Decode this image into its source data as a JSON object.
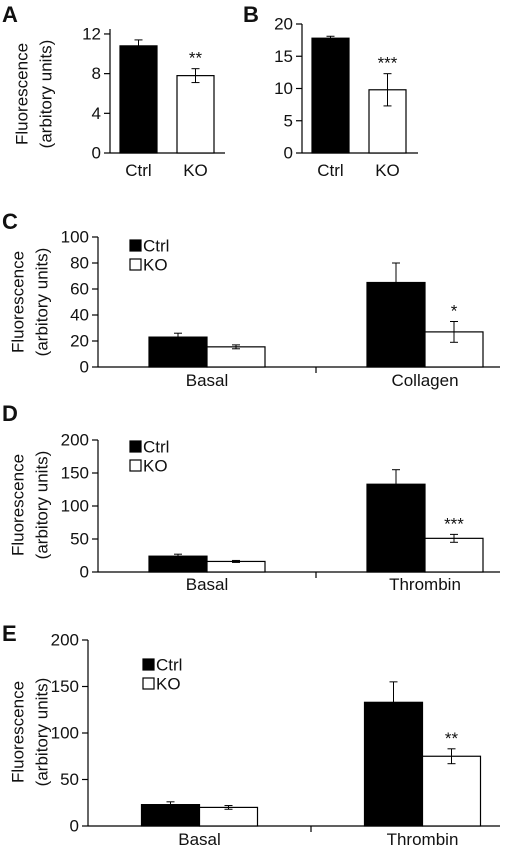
{
  "chart_data": [
    {
      "panel": "A",
      "type": "bar",
      "ylabel": [
        "Fluorescence",
        "(arbitory units)"
      ],
      "categories": [
        "Ctrl",
        "KO"
      ],
      "values": [
        10.8,
        7.8
      ],
      "errors": [
        0.6,
        0.7
      ],
      "colors": [
        "#000000",
        "#ffffff"
      ],
      "significance": [
        "",
        "**"
      ],
      "yticks": [
        0,
        4,
        8,
        12
      ],
      "ylim": [
        0,
        12.5
      ]
    },
    {
      "panel": "B",
      "type": "bar",
      "ylabel": [],
      "categories": [
        "Ctrl",
        "KO"
      ],
      "values": [
        17.8,
        9.8
      ],
      "errors": [
        0.3,
        2.5
      ],
      "colors": [
        "#000000",
        "#ffffff"
      ],
      "significance": [
        "",
        "***"
      ],
      "yticks": [
        0,
        5,
        10,
        15,
        20
      ],
      "ylim": [
        0,
        20
      ]
    },
    {
      "panel": "C",
      "type": "bar",
      "ylabel": [
        "Fluorescence",
        "(arbitory units)"
      ],
      "categories": [
        "Basal",
        "Collagen"
      ],
      "series": [
        {
          "name": "Ctrl",
          "values": [
            23,
            65
          ],
          "errors": [
            3,
            15
          ],
          "color": "#000000"
        },
        {
          "name": "KO",
          "values": [
            15.5,
            27
          ],
          "errors": [
            1.5,
            8
          ],
          "color": "#ffffff"
        }
      ],
      "significance": {
        "KO": [
          "",
          "*"
        ]
      },
      "yticks": [
        0,
        20,
        40,
        60,
        80,
        100
      ],
      "ylim": [
        0,
        100
      ],
      "legend": "top-left"
    },
    {
      "panel": "D",
      "type": "bar",
      "ylabel": [
        "Fluorescence",
        "(arbitory units)"
      ],
      "categories": [
        "Basal",
        "Thrombin"
      ],
      "series": [
        {
          "name": "Ctrl",
          "values": [
            24,
            133
          ],
          "errors": [
            3,
            22
          ],
          "color": "#000000"
        },
        {
          "name": "KO",
          "values": [
            16,
            51
          ],
          "errors": [
            1.5,
            6
          ],
          "color": "#ffffff"
        }
      ],
      "significance": {
        "KO": [
          "",
          "***"
        ]
      },
      "yticks": [
        0,
        50,
        100,
        150,
        200
      ],
      "ylim": [
        0,
        200
      ],
      "legend": "top-left"
    },
    {
      "panel": "E",
      "type": "bar",
      "ylabel": [
        "Fluorescence",
        "(arbitory units)"
      ],
      "categories": [
        "Basal",
        "Thrombin"
      ],
      "series": [
        {
          "name": "Ctrl",
          "values": [
            23,
            133
          ],
          "errors": [
            3,
            22
          ],
          "color": "#000000"
        },
        {
          "name": "KO",
          "values": [
            20,
            75
          ],
          "errors": [
            2,
            8
          ],
          "color": "#ffffff"
        }
      ],
      "significance": {
        "KO": [
          "",
          "**"
        ]
      },
      "yticks": [
        0,
        50,
        100,
        150,
        200
      ],
      "ylim": [
        0,
        200
      ],
      "legend": "top-left"
    }
  ]
}
